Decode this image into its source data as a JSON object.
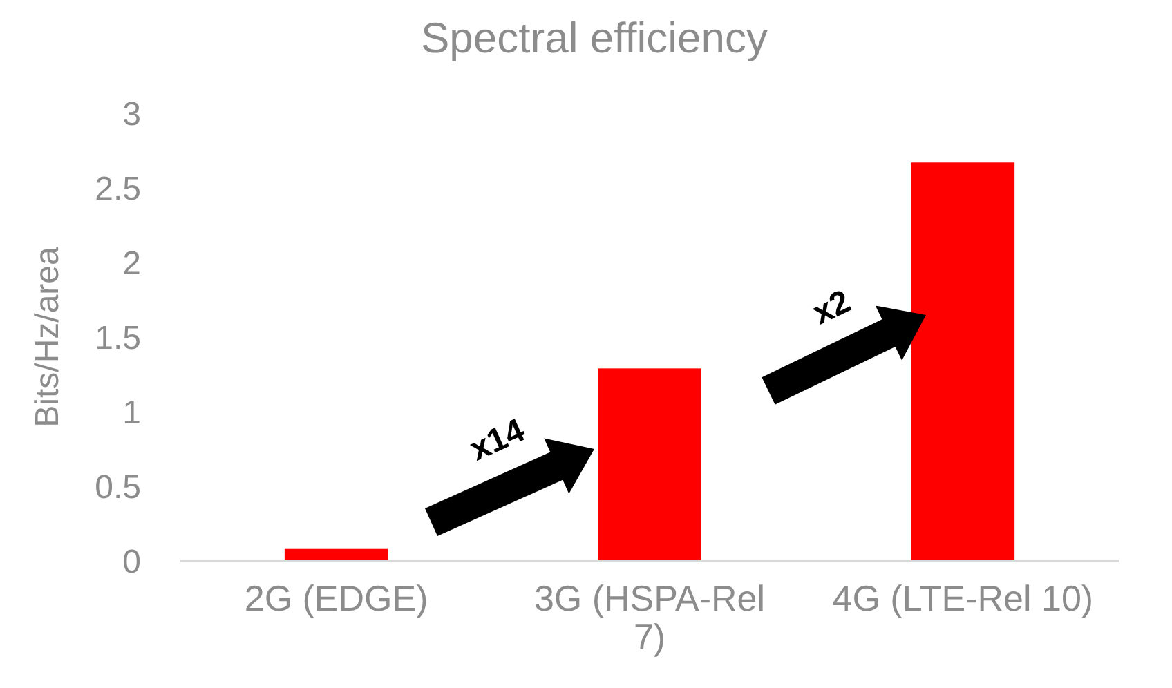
{
  "chart_data": {
    "type": "bar",
    "title": "Spectral efficiency",
    "ylabel": "Bits/Hz/area",
    "categories": [
      "2G (EDGE)",
      "3G (HSPA-Rel 7)",
      "4G (LTE-Rel 10)"
    ],
    "values": [
      0.08,
      1.29,
      2.67
    ],
    "color": "#ff0000",
    "ylim": [
      0,
      3
    ],
    "yticks": [
      0,
      0.5,
      1,
      1.5,
      2,
      2.5,
      3
    ],
    "grid": false,
    "annotations": [
      "x14",
      "x2"
    ]
  }
}
